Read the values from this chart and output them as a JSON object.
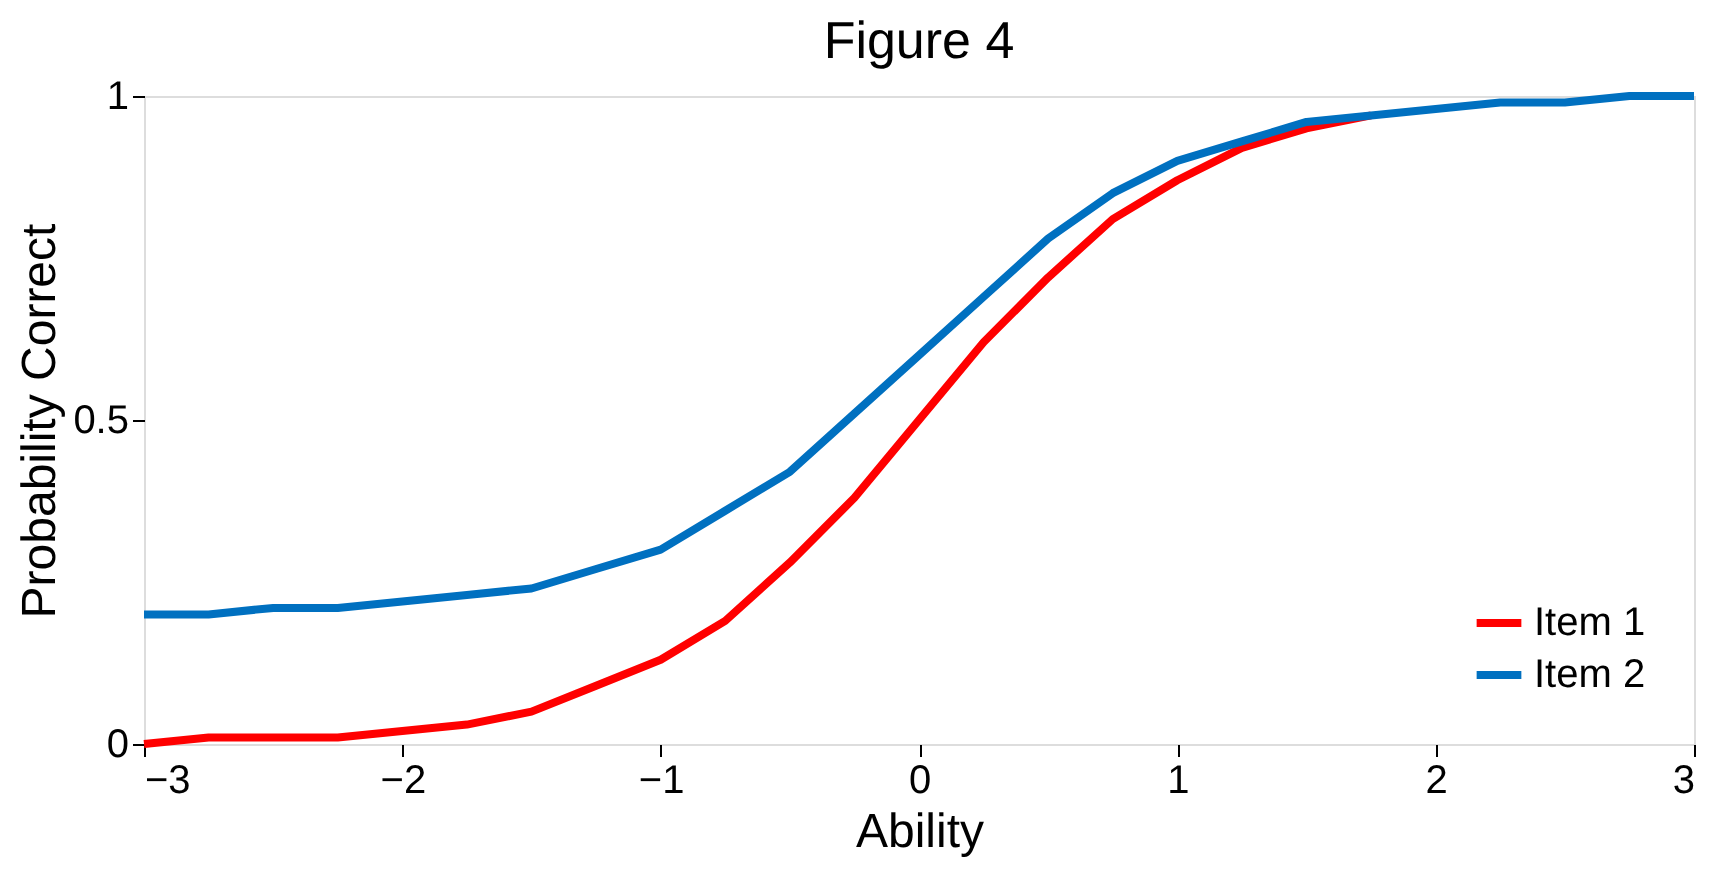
{
  "chart_data": {
    "type": "line",
    "title": "Figure 4",
    "xlabel": "Ability",
    "ylabel": "Probability Correct",
    "x": [
      -3,
      -2.75,
      -2.5,
      -2.25,
      -2,
      -1.75,
      -1.5,
      -1.25,
      -1,
      -0.75,
      -0.5,
      -0.25,
      0,
      0.25,
      0.5,
      0.75,
      1,
      1.25,
      1.5,
      1.75,
      2,
      2.25,
      2.5,
      2.75,
      3
    ],
    "series": [
      {
        "name": "Item 1",
        "color": "#ff0000",
        "values": [
          0.0,
          0.01,
          0.01,
          0.01,
          0.02,
          0.03,
          0.05,
          0.09,
          0.13,
          0.19,
          0.28,
          0.38,
          0.5,
          0.62,
          0.72,
          0.81,
          0.87,
          0.92,
          0.95,
          0.97,
          null,
          null,
          null,
          null,
          null
        ]
      },
      {
        "name": "Item 2",
        "color": "#0070c0",
        "values": [
          0.2,
          0.2,
          0.21,
          0.21,
          0.22,
          0.23,
          0.24,
          0.27,
          0.3,
          0.36,
          0.42,
          0.51,
          0.6,
          0.69,
          0.78,
          0.85,
          0.9,
          0.93,
          0.96,
          0.97,
          0.98,
          0.99,
          0.99,
          1.0,
          1.0
        ]
      }
    ],
    "xlim": [
      -3,
      3
    ],
    "xticks": [
      -3,
      -2,
      -1,
      0,
      1,
      2,
      3
    ],
    "ylim": [
      0,
      1
    ],
    "yticks": [
      0,
      0.5,
      1
    ],
    "grid": false,
    "legend": "bottom right",
    "marker": "none",
    "line_style": "solid"
  }
}
